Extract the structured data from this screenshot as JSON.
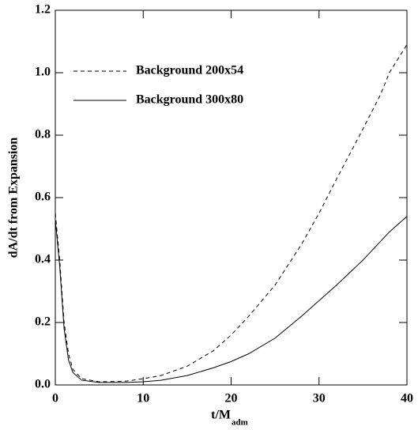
{
  "chart_data": {
    "type": "line",
    "y_label": "dA/dt from Expansion",
    "x_label": "t/M",
    "x_label_sub": "adm",
    "x": [
      0,
      0.5,
      1,
      1.5,
      2,
      3,
      5,
      8,
      10,
      12,
      15,
      18,
      20,
      22,
      25,
      28,
      30,
      32,
      35,
      37,
      38,
      40
    ],
    "series": [
      {
        "name": "Background 200x54",
        "color": "#000000",
        "linestyle": "dashed",
        "values": [
          0.55,
          0.4,
          0.2,
          0.1,
          0.05,
          0.02,
          0.01,
          0.012,
          0.02,
          0.03,
          0.06,
          0.11,
          0.16,
          0.22,
          0.32,
          0.45,
          0.55,
          0.66,
          0.82,
          0.93,
          1.0,
          1.09
        ]
      },
      {
        "name": "Background 300x80",
        "color": "#000000",
        "linestyle": "solid",
        "values": [
          0.53,
          0.38,
          0.18,
          0.08,
          0.04,
          0.015,
          0.008,
          0.008,
          0.01,
          0.015,
          0.03,
          0.055,
          0.075,
          0.1,
          0.15,
          0.22,
          0.27,
          0.32,
          0.4,
          0.46,
          0.49,
          0.54
        ]
      }
    ],
    "xlim": [
      0,
      40
    ],
    "xticks": [
      0,
      10,
      20,
      30,
      40
    ],
    "ylim": [
      0,
      1.2
    ],
    "yticks": [
      {
        "value": 0,
        "label": "0.0"
      },
      0.2,
      0.4,
      0.6,
      0.8,
      {
        "value": 1,
        "label": "1.0"
      },
      1.2
    ],
    "legend": "upper-left",
    "grid": false
  }
}
